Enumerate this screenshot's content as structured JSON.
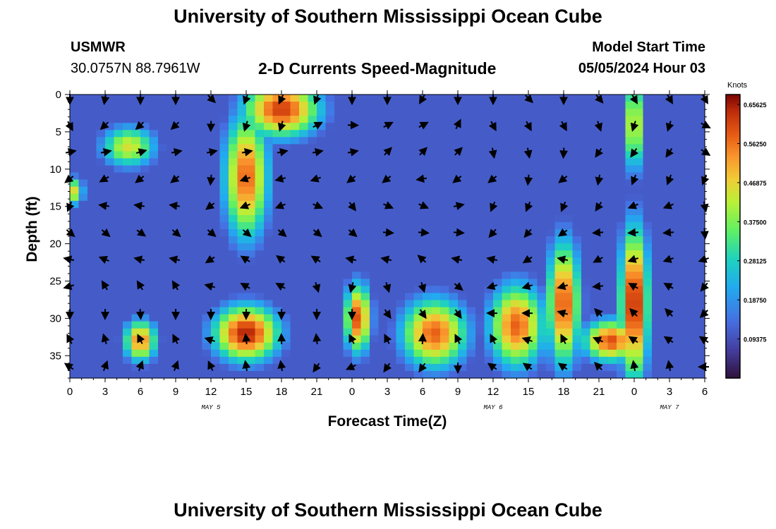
{
  "header": {
    "title": "University of Southern Mississippi Ocean Cube",
    "station": "USMWR",
    "coordinates": "30.0757N  88.7961W",
    "product": "2-D Currents Speed-Magnitude",
    "model_start_label": "Model Start Time",
    "model_start_value": "05/05/2024 Hour 03"
  },
  "footer": {
    "title": "University of Southern Mississippi Ocean Cube"
  },
  "chart_data": {
    "type": "heatmap",
    "title": "2-D Currents Speed-Magnitude",
    "xlabel": "Forecast Time(Z)",
    "ylabel": "Depth (ft)",
    "x_unit": "hours since 05/05 00Z",
    "xlim": [
      0,
      54
    ],
    "ylim": [
      0,
      38
    ],
    "y_inverted": true,
    "x_ticks": [
      0,
      3,
      6,
      9,
      12,
      15,
      18,
      21,
      24,
      27,
      30,
      33,
      36,
      39,
      42,
      45,
      48,
      51,
      54
    ],
    "x_tick_labels": [
      "0",
      "3",
      "6",
      "9",
      "12",
      "15",
      "18",
      "21",
      "0",
      "3",
      "6",
      "9",
      "12",
      "15",
      "18",
      "21",
      "0",
      "3",
      "6"
    ],
    "y_ticks": [
      0,
      5,
      10,
      15,
      20,
      25,
      30,
      35
    ],
    "y_tick_labels": [
      "0",
      "5",
      "10",
      "15",
      "20",
      "25",
      "30",
      "35"
    ],
    "date_labels": [
      {
        "x": 12,
        "text": "MAY 5"
      },
      {
        "x": 36,
        "text": "MAY 6"
      },
      {
        "x": 51,
        "text": "MAY 7"
      }
    ],
    "colorbar": {
      "title": "Knots",
      "range": [
        0.0,
        0.68
      ],
      "tick_values": [
        0.09375,
        0.1875,
        0.28125,
        0.375,
        0.46875,
        0.5625,
        0.65625
      ],
      "tick_labels": [
        "0.09375",
        "0.18750",
        "0.28125",
        "0.37500",
        "0.46875",
        "0.56250",
        "0.65625"
      ]
    },
    "speed_field_knots": [
      {
        "t": 18,
        "d": 2,
        "v": 0.62,
        "sx": 3.5,
        "sy": 4
      },
      {
        "t": 15,
        "d": 11,
        "v": 0.58,
        "sx": 2.0,
        "sy": 9
      },
      {
        "t": 15,
        "d": 32,
        "v": 0.65,
        "sx": 3.0,
        "sy": 4
      },
      {
        "t": 5,
        "d": 7,
        "v": 0.45,
        "sx": 2.5,
        "sy": 3
      },
      {
        "t": 0,
        "d": 13,
        "v": 0.5,
        "sx": 1.2,
        "sy": 2
      },
      {
        "t": 6,
        "d": 33,
        "v": 0.55,
        "sx": 1.5,
        "sy": 3
      },
      {
        "t": 24.5,
        "d": 30,
        "v": 0.6,
        "sx": 1.2,
        "sy": 5
      },
      {
        "t": 31,
        "d": 32,
        "v": 0.58,
        "sx": 3.0,
        "sy": 5
      },
      {
        "t": 38,
        "d": 31,
        "v": 0.58,
        "sx": 2.5,
        "sy": 6
      },
      {
        "t": 42,
        "d": 28,
        "v": 0.6,
        "sx": 1.5,
        "sy": 9
      },
      {
        "t": 48,
        "d": 28,
        "v": 0.66,
        "sx": 1.3,
        "sy": 11
      },
      {
        "t": 48,
        "d": 4,
        "v": 0.48,
        "sx": 0.9,
        "sy": 7
      },
      {
        "t": 46,
        "d": 33,
        "v": 0.6,
        "sx": 2.5,
        "sy": 3
      }
    ],
    "current_vectors_note": "direction arrows on a 3-hour by ~3.7-ft grid",
    "current_vectors_deg": [
      [
        180,
        190,
        180,
        180,
        135,
        200,
        205,
        200,
        180,
        180,
        210,
        180,
        180,
        135,
        180,
        140,
        150,
        150,
        150
      ],
      [
        135,
        210,
        210,
        210,
        165,
        180,
        180,
        45,
        75,
        45,
        45,
        10,
        135,
        135,
        135,
        145,
        180,
        180,
        100
      ],
      [
        45,
        45,
        40,
        45,
        45,
        45,
        45,
        45,
        45,
        10,
        10,
        10,
        135,
        135,
        150,
        180,
        180,
        180,
        90
      ]
    ]
  }
}
